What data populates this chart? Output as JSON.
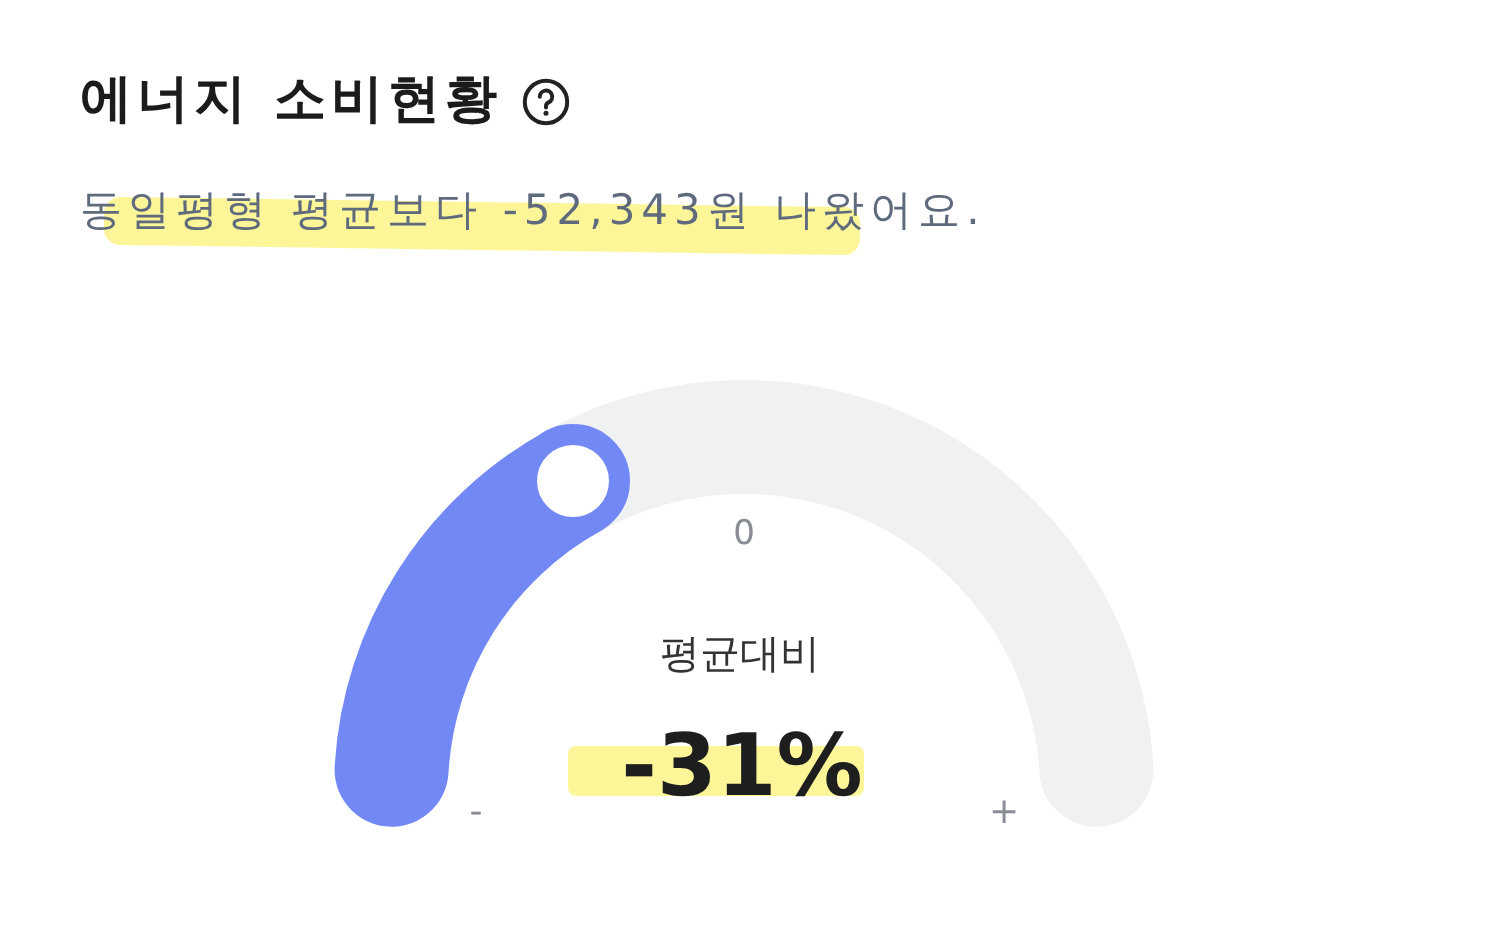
{
  "chart_data": {
    "type": "donut",
    "title": "에너지 소비현황",
    "subtitle": "동일평형 평균보다 -52,343원 나왔어요.",
    "categories": [
      null,
      null
    ],
    "values": [
      35,
      65
    ],
    "colors": [
      "#7289f5",
      "#f0f1f3"
    ],
    "annotations": [
      "0",
      "-",
      "+",
      "평균대비",
      "-31%"
    ]
  }
}
